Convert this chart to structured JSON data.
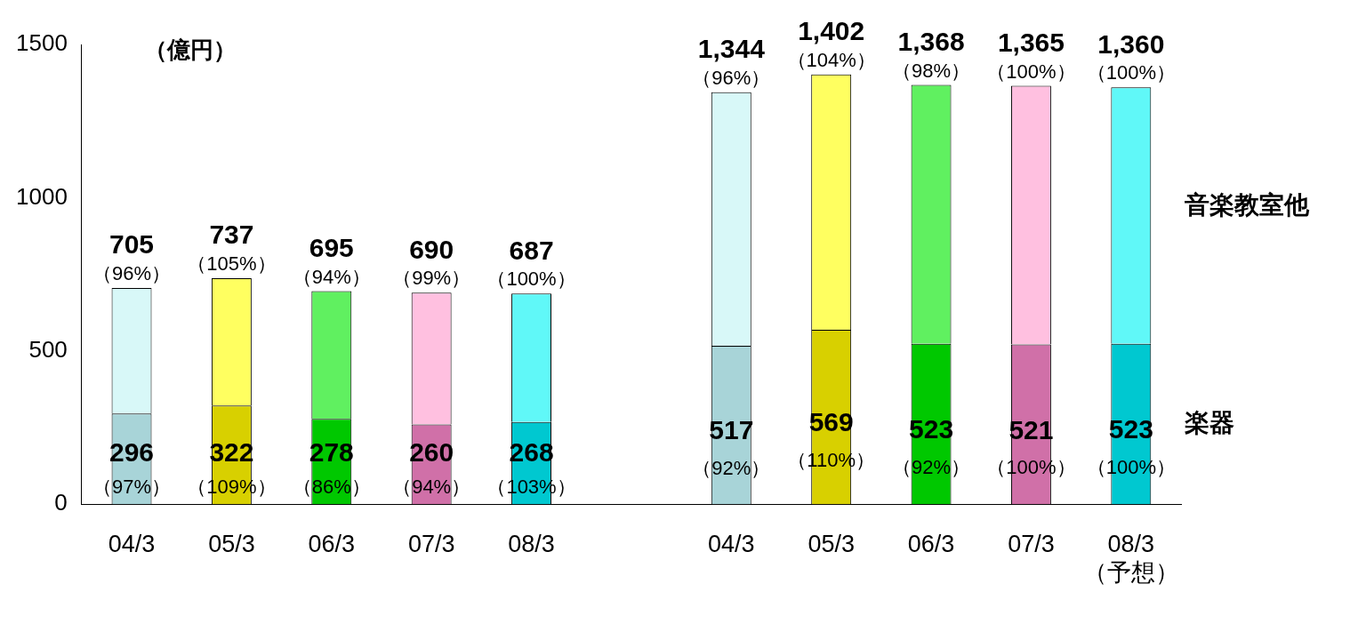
{
  "chart_data": {
    "type": "bar",
    "ylabel": "（億円）",
    "stacked": true,
    "categories": [
      "04/3",
      "05/3",
      "06/3",
      "07/3",
      "08/3",
      null,
      "04/3",
      "05/3",
      "06/3",
      "07/3",
      "08/3\n（予想）"
    ],
    "series": [
      {
        "name": "楽器",
        "colors": [
          "#a8d4d8",
          "#d8d000",
          "#00c800",
          "#d070a8",
          "#00c8d0",
          null,
          "#a8d4d8",
          "#d8d000",
          "#00c800",
          "#d070a8",
          "#00c8d0"
        ],
        "values": [
          296,
          322,
          278,
          260,
          268,
          null,
          517,
          569,
          523,
          521,
          523
        ],
        "value_labels": [
          "296\n（97%）",
          "322\n（109%）",
          "278\n（86%）",
          "260\n（94%）",
          "268\n（103%）",
          null,
          "517\n（92%）",
          "569\n（110%）",
          "523\n（92%）",
          "521\n（100%）",
          "523\n（100%）"
        ]
      },
      {
        "name": "音楽教室他",
        "colors": [
          "#d8f8f8",
          "#ffff60",
          "#60f060",
          "#ffc0e0",
          "#60f8f8",
          null,
          "#d8f8f8",
          "#ffff60",
          "#60f060",
          "#ffc0e0",
          "#60f8f8"
        ],
        "values": [
          409,
          415,
          417,
          430,
          419,
          null,
          827,
          833,
          845,
          844,
          837
        ]
      }
    ],
    "totals": [
      "705\n（96%）",
      "737\n（105%）",
      "695\n（94%）",
      "690\n（99%）",
      "687\n（100%）",
      null,
      "1,344\n（96%）",
      "1,402\n（104%）",
      "1,368\n（98%）",
      "1,365\n（100%）",
      "1,360\n（100%）"
    ],
    "ylim": [
      0,
      1500
    ],
    "yticks": [
      0,
      500,
      1000,
      1500
    ],
    "grid": false
  }
}
